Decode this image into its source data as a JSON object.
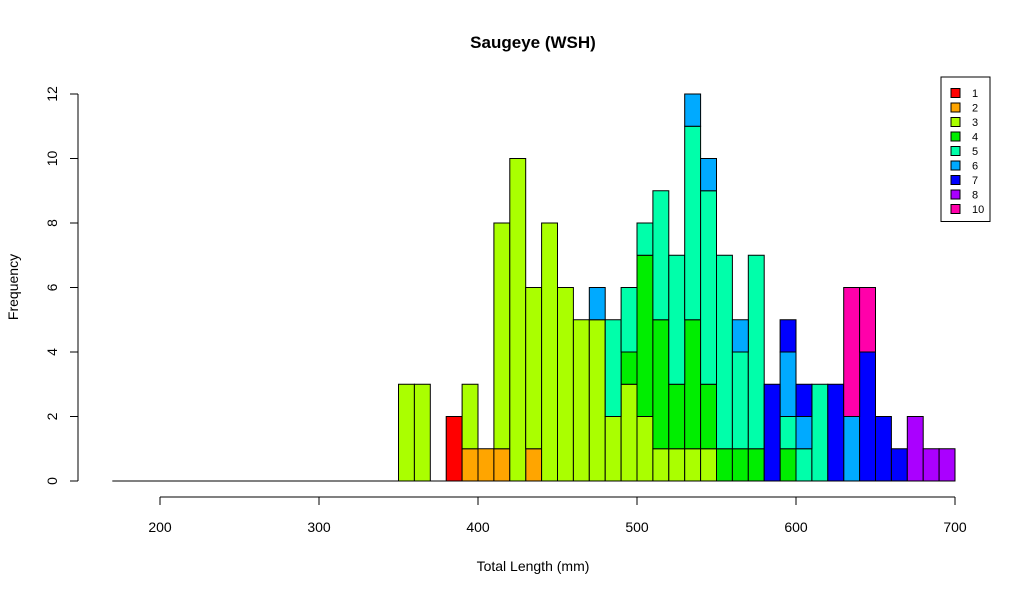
{
  "chart_data": {
    "type": "bar",
    "title": "Saugeye (WSH)",
    "xlabel": "Total Length (mm)",
    "ylabel": "Frequency",
    "xlim": [
      170,
      700
    ],
    "ylim": [
      0,
      12
    ],
    "bin_width": 10,
    "x_ticks": [
      "200",
      "300",
      "400",
      "500",
      "600",
      "700"
    ],
    "y_ticks": [
      "0",
      "2",
      "4",
      "6",
      "8",
      "10",
      "12"
    ],
    "legend_position": "top-right",
    "series": [
      {
        "name": "1",
        "color": "#FF0000",
        "bins": [
          [
            380,
            390,
            2
          ]
        ]
      },
      {
        "name": "2",
        "color": "#FFA500",
        "bins": [
          [
            390,
            400,
            1
          ],
          [
            400,
            410,
            1
          ],
          [
            410,
            420,
            1
          ],
          [
            430,
            440,
            1
          ]
        ]
      },
      {
        "name": "3",
        "color": "#AAFF00",
        "bins": [
          [
            350,
            360,
            3
          ],
          [
            360,
            370,
            3
          ],
          [
            390,
            400,
            2
          ],
          [
            410,
            420,
            7
          ],
          [
            420,
            430,
            10
          ],
          [
            430,
            440,
            5
          ],
          [
            440,
            450,
            8
          ],
          [
            450,
            460,
            6
          ],
          [
            460,
            470,
            5
          ],
          [
            470,
            480,
            5
          ],
          [
            480,
            490,
            2
          ],
          [
            490,
            500,
            3
          ],
          [
            500,
            510,
            2
          ],
          [
            510,
            520,
            1
          ],
          [
            520,
            530,
            1
          ],
          [
            530,
            540,
            1
          ],
          [
            540,
            550,
            1
          ],
          [
            570,
            580,
            0
          ],
          [
            580,
            590,
            0
          ]
        ]
      },
      {
        "name": "4",
        "color": "#00EE00",
        "bins": [
          [
            490,
            500,
            1
          ],
          [
            500,
            510,
            5
          ],
          [
            510,
            520,
            4
          ],
          [
            520,
            530,
            2
          ],
          [
            530,
            540,
            4
          ],
          [
            540,
            550,
            2
          ],
          [
            550,
            560,
            1
          ],
          [
            560,
            570,
            1
          ],
          [
            570,
            580,
            1
          ],
          [
            590,
            600,
            1
          ]
        ]
      },
      {
        "name": "5",
        "color": "#00FFAA",
        "bins": [
          [
            470,
            480,
            0
          ],
          [
            480,
            490,
            3
          ],
          [
            490,
            500,
            2
          ],
          [
            500,
            510,
            1
          ],
          [
            510,
            520,
            4
          ],
          [
            520,
            530,
            4
          ],
          [
            530,
            540,
            6
          ],
          [
            540,
            550,
            6
          ],
          [
            550,
            560,
            6
          ],
          [
            560,
            570,
            3
          ],
          [
            570,
            580,
            6
          ],
          [
            590,
            600,
            1
          ],
          [
            600,
            610,
            1
          ],
          [
            610,
            620,
            3
          ]
        ]
      },
      {
        "name": "6",
        "color": "#00AAFF",
        "bins": [
          [
            470,
            480,
            1
          ],
          [
            530,
            540,
            1
          ],
          [
            540,
            550,
            1
          ],
          [
            560,
            570,
            1
          ],
          [
            590,
            600,
            2
          ],
          [
            600,
            610,
            1
          ],
          [
            630,
            640,
            2
          ]
        ]
      },
      {
        "name": "7",
        "color": "#0000FF",
        "bins": [
          [
            580,
            590,
            3
          ],
          [
            590,
            600,
            1
          ],
          [
            600,
            610,
            1
          ],
          [
            620,
            630,
            3
          ],
          [
            640,
            650,
            4
          ],
          [
            650,
            660,
            2
          ],
          [
            660,
            670,
            1
          ]
        ]
      },
      {
        "name": "8",
        "color": "#AA00FF",
        "bins": [
          [
            670,
            680,
            2
          ],
          [
            680,
            690,
            1
          ],
          [
            690,
            700,
            1
          ]
        ]
      },
      {
        "name": "10",
        "color": "#FF00AA",
        "bins": [
          [
            630,
            640,
            4
          ],
          [
            640,
            650,
            2
          ]
        ]
      }
    ]
  }
}
